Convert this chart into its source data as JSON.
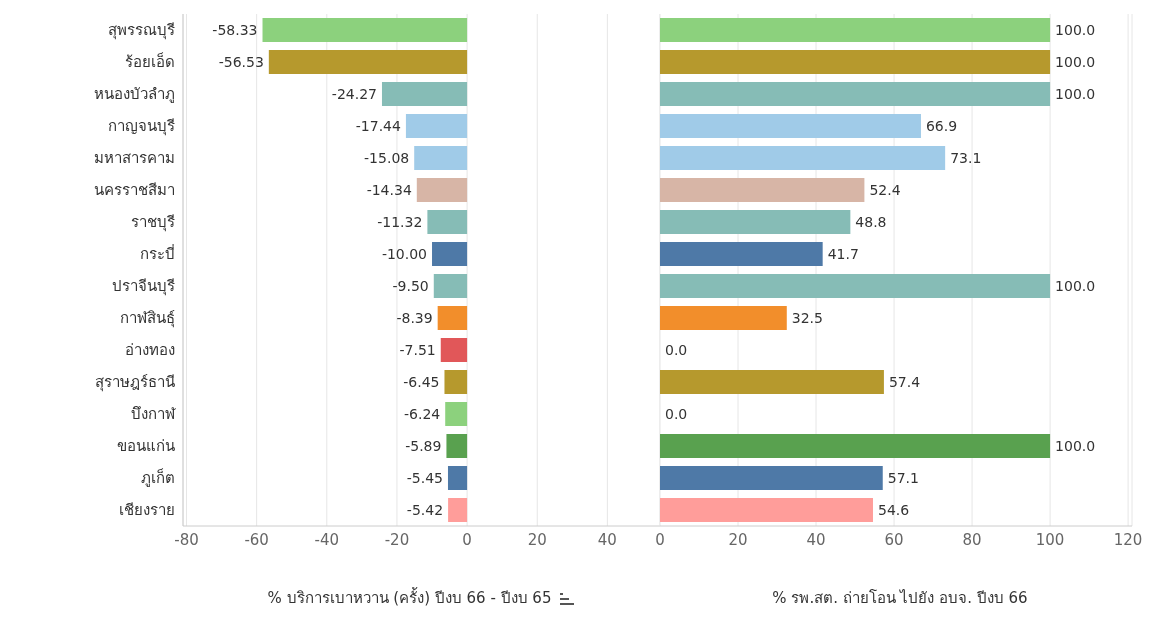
{
  "chart_data": [
    {
      "type": "bar",
      "orientation": "horizontal",
      "xlabel": "% บริการเบาหวาน (ครั้ง) ปีงบ 66 - ปีงบ 65",
      "categories": [
        "สุพรรณบุรี",
        "ร้อยเอ็ด",
        "หนองบัวลำภู",
        "กาญจนบุรี",
        "มหาสารคาม",
        "นครราชสีมา",
        "ราชบุรี",
        "กระบี่",
        "ปราจีนบุรี",
        "กาฬสินธุ์",
        "อ่างทอง",
        "สุราษฎร์ธานี",
        "บึงกาฬ",
        "ขอนแก่น",
        "ภูเก็ต",
        "เชียงราย"
      ],
      "values": [
        -58.33,
        -56.53,
        -24.27,
        -17.44,
        -15.08,
        -14.34,
        -11.32,
        -10.0,
        -9.5,
        -8.39,
        -7.51,
        -6.45,
        -6.24,
        -5.89,
        -5.45,
        -5.42
      ],
      "value_labels": [
        "-58.33",
        "-56.53",
        "-24.27",
        "-17.44",
        "-15.08",
        "-14.34",
        "-11.32",
        "-10.00",
        "-9.50",
        "-8.39",
        "-7.51",
        "-6.45",
        "-6.24",
        "-5.89",
        "-5.45",
        "-5.42"
      ],
      "colors": [
        "#8cd17d",
        "#b6992d",
        "#86bcb6",
        "#a0cbe8",
        "#a0cbe8",
        "#d7b5a6",
        "#86bcb6",
        "#4e79a7",
        "#86bcb6",
        "#f28e2b",
        "#e15759",
        "#b6992d",
        "#8cd17d",
        "#59a14f",
        "#4e79a7",
        "#ff9d9a"
      ],
      "xlim": [
        -81,
        55
      ],
      "xticks": [
        -80,
        -60,
        -40,
        -20,
        0,
        20,
        40
      ],
      "grid": "x"
    },
    {
      "type": "bar",
      "orientation": "horizontal",
      "xlabel": "% รพ.สต. ถ่ายโอน ไปยัง อบจ. ปีงบ 66",
      "values": [
        100.0,
        100.0,
        100.0,
        66.9,
        73.1,
        52.4,
        48.8,
        41.7,
        100.0,
        32.5,
        0.0,
        57.4,
        0.0,
        100.0,
        57.1,
        54.6
      ],
      "value_labels": [
        "100.0",
        "100.0",
        "100.0",
        "66.9",
        "73.1",
        "52.4",
        "48.8",
        "41.7",
        "100.0",
        "32.5",
        "0.0",
        "57.4",
        "0.0",
        "100.0",
        "57.1",
        "54.6"
      ],
      "colors": [
        "#8cd17d",
        "#b6992d",
        "#86bcb6",
        "#a0cbe8",
        "#a0cbe8",
        "#d7b5a6",
        "#86bcb6",
        "#4e79a7",
        "#86bcb6",
        "#f28e2b",
        "#e15759",
        "#b6992d",
        "#8cd17d",
        "#59a14f",
        "#4e79a7",
        "#ff9d9a"
      ],
      "xlim": [
        0,
        121
      ],
      "xticks": [
        0,
        20,
        40,
        60,
        80,
        100,
        120
      ],
      "grid": "x",
      "tick_labels": "x"
    }
  ]
}
